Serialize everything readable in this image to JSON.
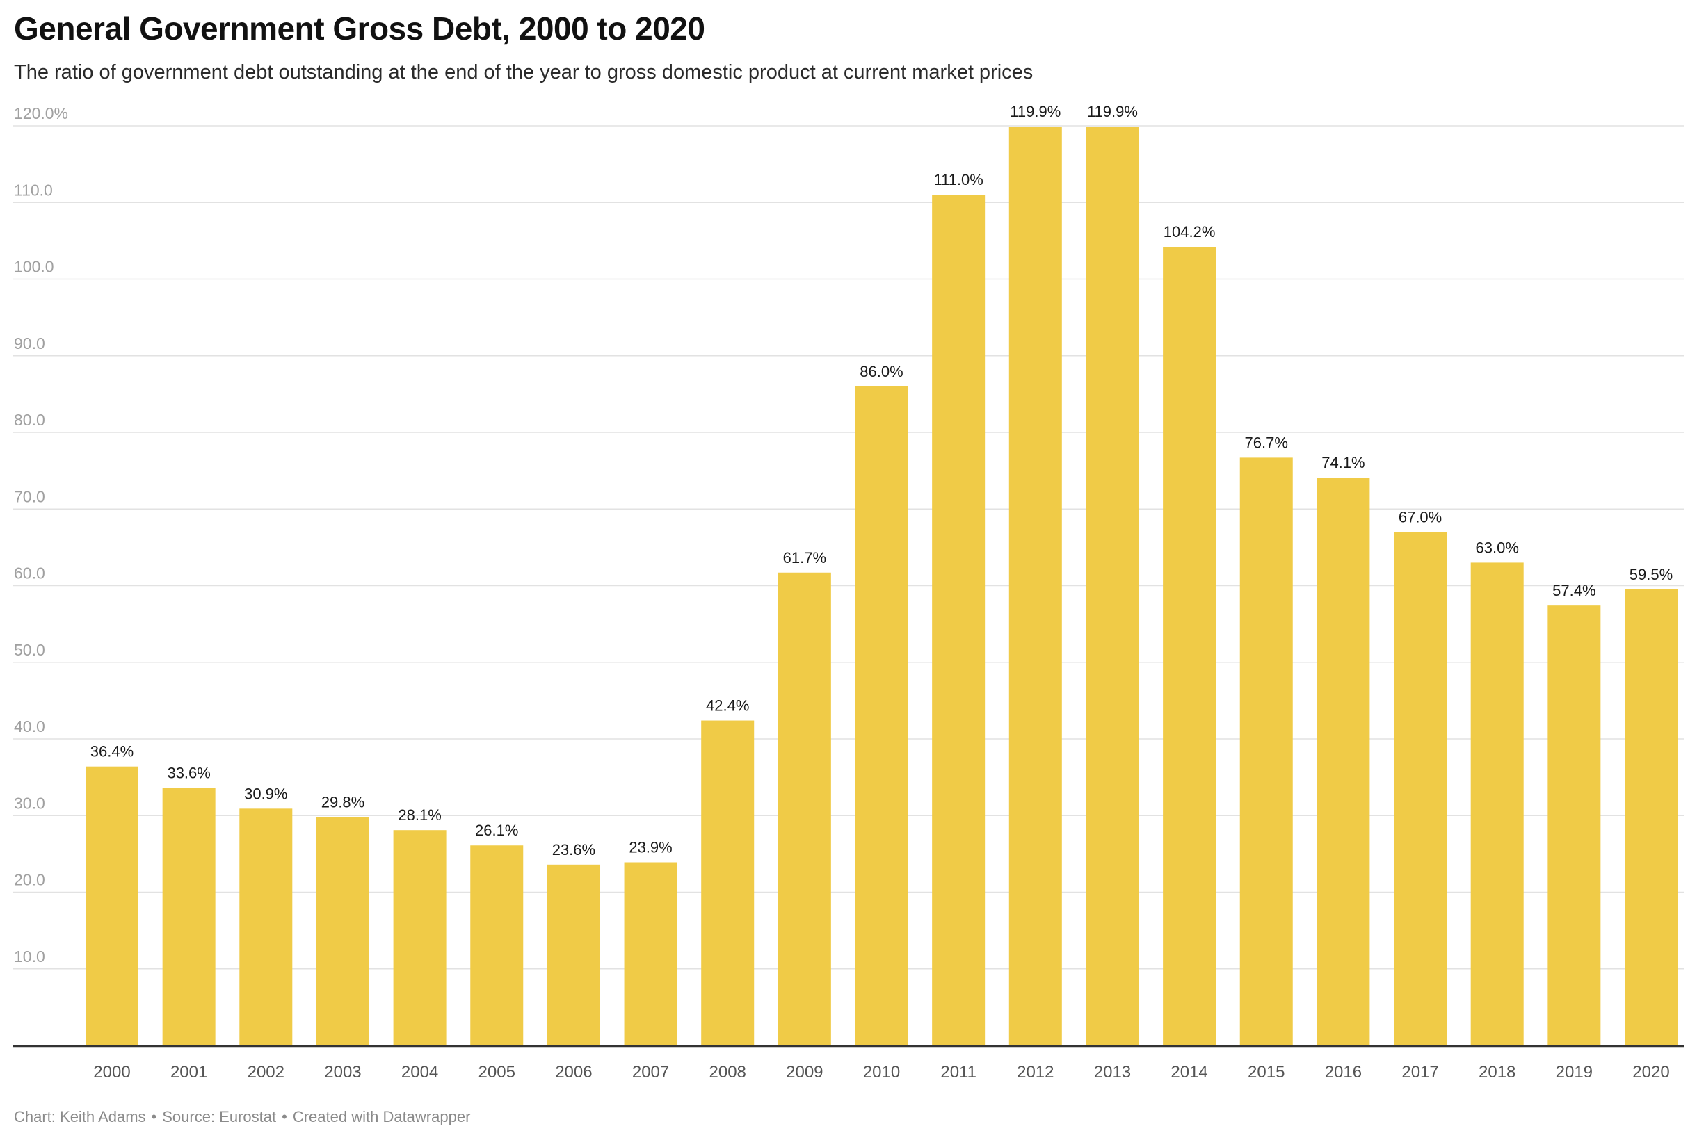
{
  "header": {
    "title": "General Government Gross Debt, 2000 to 2020",
    "subtitle": "The ratio of government debt outstanding at the end of the year to gross domestic product at current market prices"
  },
  "footer": {
    "author": "Chart: Keith Adams",
    "source": "Source: Eurostat",
    "credit": "Created with Datawrapper",
    "separator": "•"
  },
  "colors": {
    "bar": "#f0cb47",
    "grid": "#e2e2e2",
    "axis": "#333333",
    "tick_label": "#a0a0a0",
    "category_label": "#555555",
    "value_label": "#1a1a1a"
  },
  "chart_data": {
    "type": "bar",
    "categories": [
      "2000",
      "2001",
      "2002",
      "2003",
      "2004",
      "2005",
      "2006",
      "2007",
      "2008",
      "2009",
      "2010",
      "2011",
      "2012",
      "2013",
      "2014",
      "2015",
      "2016",
      "2017",
      "2018",
      "2019",
      "2020"
    ],
    "values": [
      36.4,
      33.6,
      30.9,
      29.8,
      28.1,
      26.1,
      23.6,
      23.9,
      42.4,
      61.7,
      86.0,
      111.0,
      119.9,
      119.9,
      104.2,
      76.7,
      74.1,
      67.0,
      63.0,
      57.4,
      59.5
    ],
    "value_labels": [
      "36.4%",
      "33.6%",
      "30.9%",
      "29.8%",
      "28.1%",
      "26.1%",
      "23.6%",
      "23.9%",
      "42.4%",
      "61.7%",
      "86.0%",
      "111.0%",
      "119.9%",
      "119.9%",
      "104.2%",
      "76.7%",
      "74.1%",
      "67.0%",
      "63.0%",
      "57.4%",
      "59.5%"
    ],
    "y_ticks": [
      10,
      20,
      30,
      40,
      50,
      60,
      70,
      80,
      90,
      100,
      110,
      120
    ],
    "y_tick_labels": [
      "10.0",
      "20.0",
      "30.0",
      "40.0",
      "50.0",
      "60.0",
      "70.0",
      "80.0",
      "90.0",
      "100.0",
      "110.0",
      "120.0%"
    ],
    "ylim": [
      0,
      120
    ],
    "title": "General Government Gross Debt, 2000 to 2020",
    "xlabel": "",
    "ylabel": "",
    "grid": true,
    "legend": "none"
  }
}
